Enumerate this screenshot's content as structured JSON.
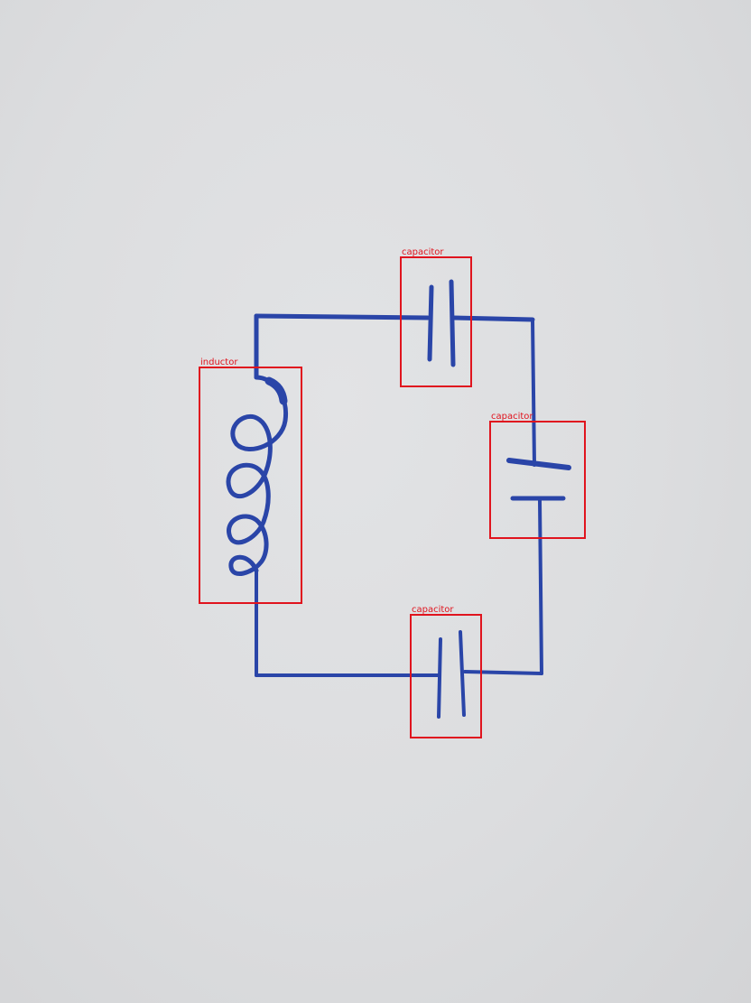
{
  "diagram": {
    "type": "hand-drawn circuit",
    "components": [
      {
        "id": "c-top",
        "label": "capacitor"
      },
      {
        "id": "l-left",
        "label": "inductor"
      },
      {
        "id": "c-right",
        "label": "capacitor"
      },
      {
        "id": "c-bottom",
        "label": "capacitor"
      }
    ]
  },
  "colors": {
    "ink": "#2a45a8",
    "annotation": "#e0141e",
    "paper": "#dcdddf"
  }
}
